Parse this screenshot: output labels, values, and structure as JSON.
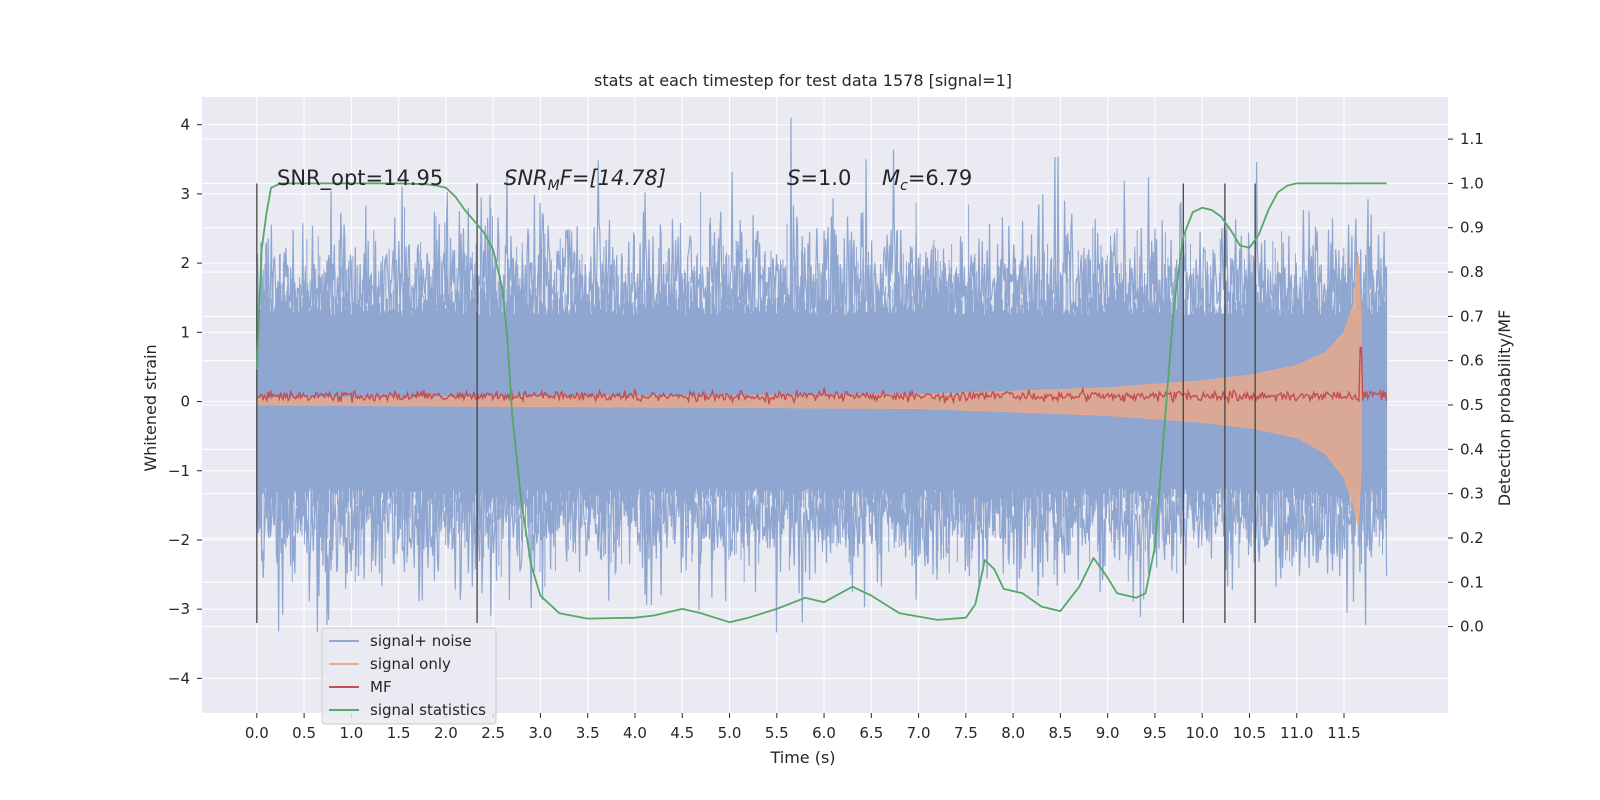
{
  "chart_data": {
    "type": "line",
    "title": "stats at each timestep for test data 1578 [signal=1]",
    "xlabel": "Time (s)",
    "ylabel_left": "Whitened strain",
    "ylabel_right": "Detection probability/MF",
    "xlim": [
      -0.58,
      12.6
    ],
    "ylim_left": [
      -4.5,
      4.4
    ],
    "ylim_right": [
      -0.195,
      1.195
    ],
    "x_ticks": [
      0.0,
      0.5,
      1.0,
      1.5,
      2.0,
      2.5,
      3.0,
      3.5,
      4.0,
      4.5,
      5.0,
      5.5,
      6.0,
      6.5,
      7.0,
      7.5,
      8.0,
      8.5,
      9.0,
      9.5,
      10.0,
      10.5,
      11.0,
      11.5
    ],
    "x_tick_labels": [
      "0.0",
      "0.5",
      "1.0",
      "1.5",
      "2.0",
      "2.5",
      "3.0",
      "3.5",
      "4.0",
      "4.5",
      "5.0",
      "5.5",
      "6.0",
      "6.5",
      "7.0",
      "7.5",
      "8.0",
      "8.5",
      "9.0",
      "9.5",
      "10.0",
      "10.5",
      "11.0",
      "11.5"
    ],
    "y_left_ticks": [
      4,
      3,
      2,
      1,
      0,
      -1,
      -2,
      -3,
      -4
    ],
    "y_left_tick_labels": [
      "4",
      "3",
      "2",
      "1",
      "0",
      "−1",
      "−2",
      "−3",
      "−4"
    ],
    "y_right_ticks": [
      1.1,
      1.0,
      0.9,
      0.8,
      0.7,
      0.6,
      0.5,
      0.4,
      0.3,
      0.2,
      0.1,
      0.0
    ],
    "y_right_tick_labels": [
      "1.1",
      "1.0",
      "0.9",
      "0.8",
      "0.7",
      "0.6",
      "0.5",
      "0.4",
      "0.3",
      "0.2",
      "0.1",
      "0.0"
    ],
    "grid": true,
    "legend_position": "lower-left",
    "annotations": {
      "snr_opt": "SNR_opt=14.95",
      "snr_mf_sym": "SNR",
      "snr_mf_sub": "M",
      "snr_mf_rest": "F=[14.78]",
      "s_sym": "S",
      "s_rest": "=1.0",
      "mc_sym": "M",
      "mc_sub": "c",
      "mc_rest": "=6.79"
    },
    "series": [
      {
        "name": "signal+ noise",
        "axis": "left",
        "color": "#8fa6d0",
        "envelope": {
          "x_range": [
            0.0,
            11.95
          ],
          "typical_amplitude": 2.0,
          "peak_amplitude": 4.1
        }
      },
      {
        "name": "signal only",
        "axis": "left",
        "color": "#e8a98c",
        "envelope": {
          "x": [
            0.0,
            7.0,
            8.0,
            9.0,
            10.0,
            10.5,
            11.0,
            11.3,
            11.5,
            11.6,
            11.65,
            11.68
          ],
          "upper": [
            0.05,
            0.1,
            0.15,
            0.2,
            0.3,
            0.38,
            0.52,
            0.7,
            1.0,
            1.4,
            2.1,
            1.2
          ],
          "lower": [
            -0.05,
            -0.1,
            -0.15,
            -0.2,
            -0.3,
            -0.38,
            -0.52,
            -0.75,
            -1.1,
            -1.5,
            -1.8,
            -1.0
          ]
        }
      },
      {
        "name": "MF",
        "axis": "right",
        "color": "#c44e52",
        "baseline": 0.52,
        "spike": {
          "x": 11.68,
          "y": 0.63
        }
      },
      {
        "name": "signal statistics",
        "axis": "right",
        "color": "#55a868",
        "x": [
          0.0,
          0.05,
          0.1,
          0.15,
          0.25,
          0.5,
          1.0,
          1.5,
          1.8,
          1.9,
          2.0,
          2.1,
          2.2,
          2.3,
          2.4,
          2.5,
          2.6,
          2.65,
          2.7,
          2.8,
          2.9,
          3.0,
          3.2,
          3.5,
          4.0,
          4.2,
          4.5,
          4.7,
          5.0,
          5.2,
          5.5,
          5.8,
          6.0,
          6.3,
          6.5,
          6.8,
          7.2,
          7.5,
          7.6,
          7.7,
          7.8,
          7.9,
          8.0,
          8.1,
          8.3,
          8.5,
          8.7,
          8.85,
          9.0,
          9.1,
          9.3,
          9.4,
          9.5,
          9.6,
          9.7,
          9.8,
          9.9,
          10.0,
          10.1,
          10.2,
          10.3,
          10.4,
          10.5,
          10.6,
          10.7,
          10.8,
          10.9,
          11.0,
          11.3,
          11.6,
          11.95
        ],
        "y": [
          0.58,
          0.85,
          0.93,
          0.99,
          1.0,
          1.0,
          1.0,
          1.0,
          0.998,
          0.995,
          0.99,
          0.97,
          0.94,
          0.915,
          0.89,
          0.85,
          0.76,
          0.65,
          0.48,
          0.28,
          0.14,
          0.07,
          0.03,
          0.018,
          0.02,
          0.025,
          0.04,
          0.03,
          0.01,
          0.02,
          0.04,
          0.065,
          0.055,
          0.09,
          0.07,
          0.03,
          0.015,
          0.02,
          0.05,
          0.15,
          0.13,
          0.085,
          0.08,
          0.075,
          0.045,
          0.035,
          0.09,
          0.155,
          0.11,
          0.075,
          0.065,
          0.075,
          0.18,
          0.45,
          0.72,
          0.88,
          0.935,
          0.945,
          0.94,
          0.925,
          0.895,
          0.86,
          0.855,
          0.885,
          0.94,
          0.98,
          0.995,
          1.0,
          1.0,
          1.0,
          1.0
        ]
      }
    ],
    "vertical_markers": [
      0.0,
      2.33,
      9.8,
      10.24,
      10.56
    ]
  }
}
